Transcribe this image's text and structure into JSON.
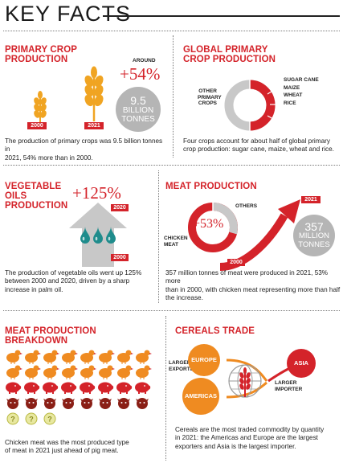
{
  "page_title": "KEY FACTS",
  "colors": {
    "accent": "#d4232a",
    "orange": "#ef8b21",
    "grey": "#b5b5b5",
    "teal": "#1f8c8c",
    "wheat": "#f0a422"
  },
  "primary_crop": {
    "heading_line1": "PRIMARY CROP",
    "heading_line2": "PRODUCTION",
    "around": "AROUND",
    "pct": "+54%",
    "year_start": "2000",
    "year_end": "2021",
    "circle_value": "9.5",
    "circle_unit_line1": "BILLION",
    "circle_unit_line2": "TONNES",
    "text_line1": "The production of primary crops was 9.5 billion tonnes in",
    "text_line2": "2021, 54% more than in 2000."
  },
  "global_primary": {
    "heading_line1": "GLOBAL PRIMARY",
    "heading_line2": "CROP PRODUCTION",
    "other_line1": "OTHER",
    "other_line2": "PRIMARY",
    "other_line3": "CROPS",
    "crop1": "SUGAR CANE",
    "crop2": "MAIZE",
    "crop3": "WHEAT",
    "crop4": "RICE",
    "text_line1": "Four crops account for about half of global primary",
    "text_line2": "crop production: sugar cane, maize, wheat and rice."
  },
  "vegetable_oils": {
    "heading_line1": "VEGETABLE",
    "heading_line2": "OILS",
    "heading_line3": "PRODUCTION",
    "pct": "+125%",
    "year_end": "2020",
    "year_start": "2000",
    "text_line1": "The production of vegetable oils went up 125%",
    "text_line2": "between 2000 and 2020, driven by a sharp",
    "text_line3": "increase in palm oil."
  },
  "meat_production": {
    "heading": "MEAT PRODUCTION",
    "pct": "+53%",
    "others": "OTHERS",
    "chicken_line1": "CHICKEN",
    "chicken_line2": "MEAT",
    "year_start": "2000",
    "year_end": "2021",
    "circle_value": "357",
    "circle_unit_line1": "MILLION",
    "circle_unit_line2": "TONNES",
    "text_line1": "357 million tonnes of meat were produced in 2021, 53% more",
    "text_line2": "than in 2000, with chicken meat representing more than half",
    "text_line3": "the increase."
  },
  "meat_breakdown": {
    "heading_line1": "MEAT PRODUCTION",
    "heading_line2": "BREAKDOWN",
    "icon_rows": [
      {
        "kind": "chicken",
        "count": 8
      },
      {
        "kind": "chicken",
        "count": 8
      },
      {
        "kind": "pig",
        "count": 8
      },
      {
        "kind": "cow",
        "count": 8
      },
      {
        "kind": "other",
        "count": 3
      }
    ],
    "text_line1": "Chicken meat was the most produced type",
    "text_line2": "of meat in 2021 just ahead of pig meat."
  },
  "cereals_trade": {
    "heading": "CEREALS TRADE",
    "exporters_line1": "LARGER",
    "exporters_line2": "EXPORTERS",
    "europe": "EUROPE",
    "americas": "AMERICAS",
    "asia": "ASIA",
    "importer_line1": "LARGER",
    "importer_line2": "IMPORTER",
    "text_line1": "Cereals are the most traded commodity by quantity",
    "text_line2": "in 2021: the Americas and Europe are the largest",
    "text_line3": "exporters and Asia is the largest importer."
  }
}
